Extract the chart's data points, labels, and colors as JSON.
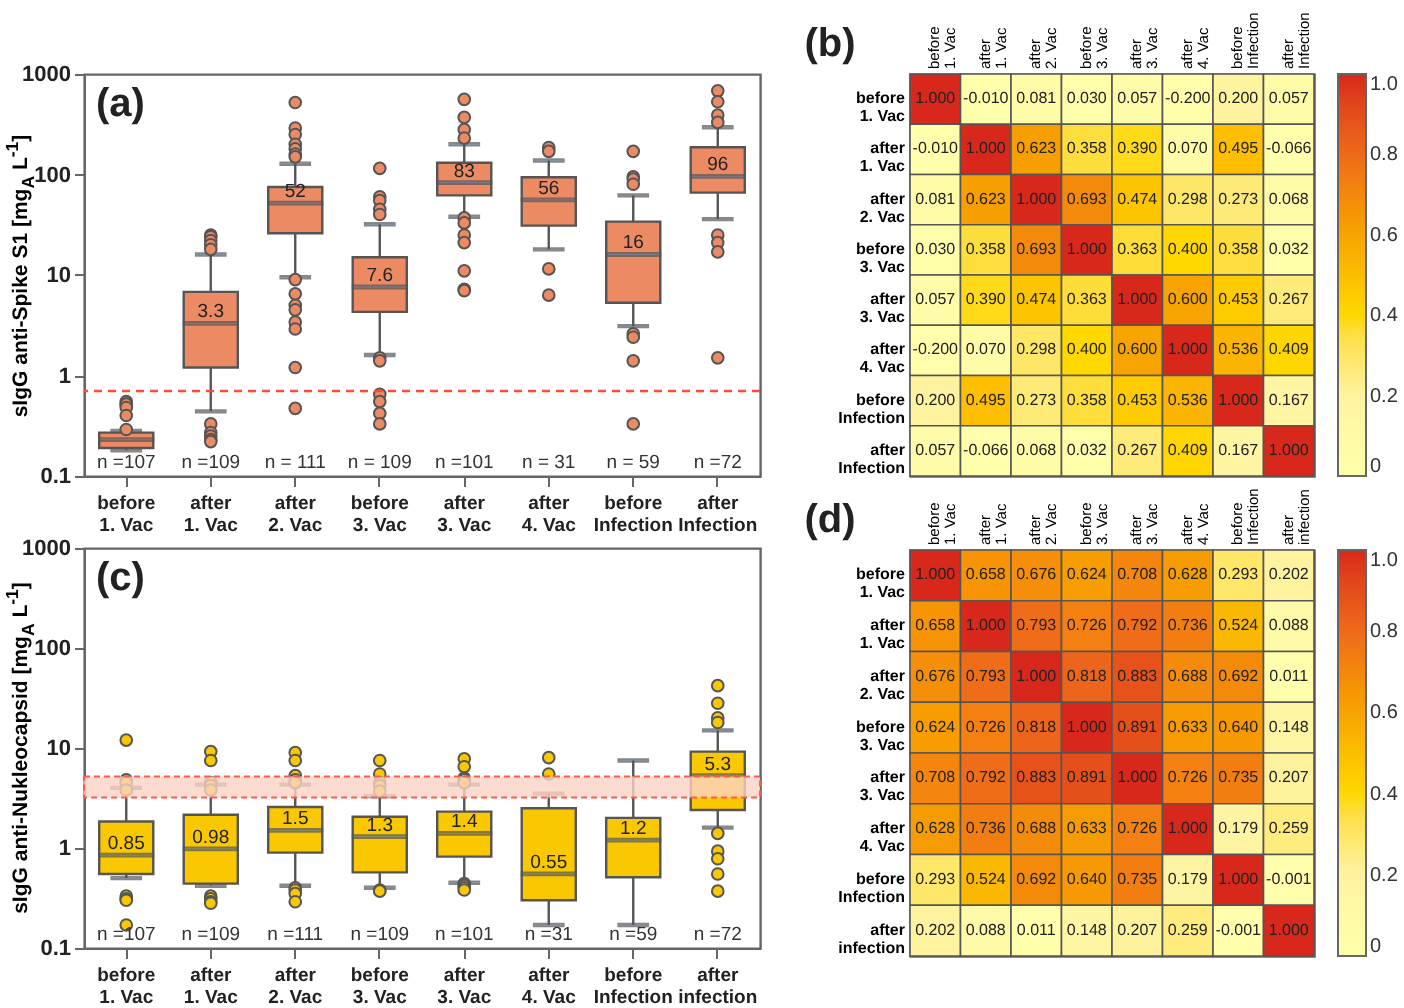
{
  "chart_data": [
    {
      "type": "box",
      "title": "(a)",
      "ylabel": "sIgG anti-Spike S1 [mg$_{A}$ L$^{-1}$]",
      "log": true,
      "ylim": [
        0.1,
        1000
      ],
      "yticks": [
        0.1,
        1,
        10,
        100,
        1000
      ],
      "marker": "circle",
      "categories": [
        "before 1. Vac",
        "after 1. Vac",
        "after 2. Vac",
        "before 3. Vac",
        "after 3. Vac",
        "after 4. Vac",
        "before Infection",
        "after Infection"
      ],
      "series": [
        {
          "color": "#ec8a64",
          "value_labels": [
            null,
            "3.3",
            "52",
            "7.6",
            "83",
            "56",
            "16",
            "96"
          ],
          "boxes": [
            {
              "low": 0.18,
              "q1": 0.19,
              "median": 0.23,
              "q3": 0.27,
              "high": 0.28,
              "outliers": [
                0.55,
                0.52,
                0.52,
                0.48,
                0.4,
                0.29
              ]
            },
            {
              "low": 0.44,
              "q1": 1.2,
              "median": 3.3,
              "q3": 6.8,
              "high": 16,
              "outliers": [
                25,
                24,
                22,
                20,
                18,
                0.33,
                0.27,
                0.25,
                0.23,
                0.22
              ]
            },
            {
              "low": 9.5,
              "q1": 26,
              "median": 52,
              "q3": 75,
              "high": 128,
              "outliers": [
                520,
                290,
                250,
                200,
                180,
                160,
                150,
                9,
                6.5,
                5,
                4.5,
                3.4,
                2.9,
                1.2,
                0.47
              ]
            },
            {
              "low": 1.6,
              "q1": 4.3,
              "median": 7.6,
              "q3": 15,
              "high": 32,
              "outliers": [
                115,
                60,
                55,
                45,
                40,
                1.5,
                1.4,
                0.65,
                0.55,
                0.42,
                0.33
              ]
            },
            {
              "low": 38,
              "q1": 62,
              "median": 83,
              "q3": 131,
              "high": 200,
              "outliers": [
                560,
                370,
                280,
                230,
                37,
                33,
                25,
                21,
                11,
                7.2,
                7
              ]
            },
            {
              "low": 18,
              "q1": 31,
              "median": 56,
              "q3": 94,
              "high": 138,
              "outliers": [
                185,
                170,
                11.5,
                6.3
              ]
            },
            {
              "low": 3.1,
              "q1": 5.3,
              "median": 16,
              "q3": 34,
              "high": 62,
              "outliers": [
                170,
                95,
                90,
                80,
                2.6,
                2.4,
                1.4,
                0.33
              ]
            },
            {
              "low": 36,
              "q1": 66,
              "median": 96,
              "q3": 187,
              "high": 295,
              "outliers": [
                680,
                530,
                390,
                330,
                25,
                21,
                17,
                1.5
              ]
            }
          ]
        }
      ],
      "ref_lines": [
        {
          "axis": "y",
          "value": 0.7,
          "color": "#ff4a3a",
          "line_style": "dashed"
        }
      ],
      "annotations": [
        "n =107",
        "n =109",
        "n = 111",
        "n = 109",
        "n =101",
        "n = 31",
        "n = 59",
        "n =72"
      ]
    },
    {
      "type": "heatmap",
      "title": "(b)",
      "clim": [
        0,
        1
      ],
      "cticks": [
        0,
        0.2,
        0.4,
        0.6,
        0.8,
        {
          "value": 1,
          "label": "1.0"
        }
      ],
      "categories": [
        "before 1. Vac",
        "after 1. Vac",
        "after 2. Vac",
        "before 3. Vac",
        "after 3. Vac",
        "after 4. Vac",
        "before Infection",
        "after Infection"
      ],
      "y_categories": [
        "before 1. Vac",
        "after 1. Vac",
        "after 2. Vac",
        "before 3. Vac",
        "after 3. Vac",
        "after 4. Vac",
        "before Infection",
        "after Infection"
      ],
      "cells": [
        [
          1,
          -0.01,
          0.081,
          0.03,
          0.057,
          -0.2,
          0.2,
          0.057
        ],
        [
          -0.01,
          1,
          0.623,
          0.358,
          0.39,
          0.07,
          0.495,
          -0.066
        ],
        [
          0.081,
          0.623,
          1,
          0.693,
          0.474,
          0.298,
          0.273,
          0.068
        ],
        [
          0.03,
          0.358,
          0.693,
          1,
          0.363,
          0.4,
          0.358,
          0.032
        ],
        [
          0.057,
          0.39,
          0.474,
          0.363,
          1,
          0.6,
          0.453,
          0.267
        ],
        [
          -0.2,
          0.07,
          0.298,
          0.4,
          0.6,
          1,
          0.536,
          0.409
        ],
        [
          0.2,
          0.495,
          0.273,
          0.358,
          0.453,
          0.536,
          1,
          0.167
        ],
        [
          0.057,
          -0.066,
          0.068,
          0.032,
          0.267,
          0.409,
          0.167,
          1
        ]
      ],
      "cell_labels": [
        [
          "1.000",
          "-0.010",
          "0.081",
          "0.030",
          "0.057",
          "-0.200",
          "0.200",
          "0.057"
        ],
        [
          "-0.010",
          "1.000",
          "0.623",
          "0.358",
          "0.390",
          "0.070",
          "0.495",
          "-0.066"
        ],
        [
          "0.081",
          "0.623",
          "1.000",
          "0.693",
          "0.474",
          "0.298",
          "0.273",
          "0.068"
        ],
        [
          "0.030",
          "0.358",
          "0.693",
          "1.000",
          "0.363",
          "0.400",
          "0.358",
          "0.032"
        ],
        [
          "0.057",
          "0.390",
          "0.474",
          "0.363",
          "1.000",
          "0.600",
          "0.453",
          "0.267"
        ],
        [
          "-0.200",
          "0.070",
          "0.298",
          "0.400",
          "0.600",
          "1.000",
          "0.536",
          "0.409"
        ],
        [
          "0.200",
          "0.495",
          "0.273",
          "0.358",
          "0.453",
          "0.536",
          "1.000",
          "0.167"
        ],
        [
          "0.057",
          "-0.066",
          "0.068",
          "0.032",
          "0.267",
          "0.409",
          "0.167",
          "1.000"
        ]
      ]
    },
    {
      "type": "box",
      "title": "(c)",
      "ylabel": "sIgG anti-Nukleocapsid [mg$_{A}$ L$^{-1}$]",
      "log": true,
      "ylim": [
        0.1,
        1000
      ],
      "yticks": [
        0.1,
        1,
        10,
        100,
        1000
      ],
      "marker": "circle",
      "categories": [
        "before 1. Vac",
        "after 1. Vac",
        "after 2. Vac",
        "before 3. Vac",
        "after 3. Vac",
        "after 4. Vac",
        "before Infection",
        "after infection"
      ],
      "series": [
        {
          "color": "#fac800",
          "value_labels": [
            "0.85",
            "0.98",
            "1.5",
            "1.3",
            "1.4",
            "0.55",
            "1.2",
            "5.3"
          ],
          "boxes": [
            {
              "low": 0.5,
              "q1": 0.55,
              "median": 0.85,
              "q3": 1.84,
              "high": 4,
              "outliers": [
                12,
                4.8,
                4.5,
                3.8,
                0.33,
                0.31,
                0.3,
                0.17
              ]
            },
            {
              "low": 0.42,
              "q1": 0.44,
              "median": 0.98,
              "q3": 2.15,
              "high": 4.3,
              "outliers": [
                9.2,
                7.5,
                4.5,
                4.2,
                3.8,
                0.33,
                0.31,
                0.29,
                0.28
              ]
            },
            {
              "low": 0.42,
              "q1": 0.9,
              "median": 1.5,
              "q3": 2.57,
              "high": 4.3,
              "outliers": [
                9,
                7.5,
                5.3,
                4.8,
                4.5,
                0.4,
                0.38,
                0.35,
                0.29
              ]
            },
            {
              "low": 0.4,
              "q1": 0.57,
              "median": 1.3,
              "q3": 2.05,
              "high": 3.3,
              "outliers": [
                7.5,
                5.5,
                4.5,
                4.2,
                3.7,
                0.38,
                0.37
              ]
            },
            {
              "low": 0.45,
              "q1": 0.82,
              "median": 1.4,
              "q3": 2.31,
              "high": 4.3,
              "outliers": [
                7.8,
                6.5,
                5,
                4.8,
                4.5,
                0.44,
                0.42,
                0.4,
                0.38
              ]
            },
            {
              "low": 0.17,
              "q1": 0.3,
              "median": 0.55,
              "q3": 2.5,
              "high": 3.5,
              "outliers": [
                8,
                5.5
              ]
            },
            {
              "low": 0.17,
              "q1": 0.51,
              "median": 1.2,
              "q3": 2,
              "high": 7.5
            },
            {
              "low": 1.6,
              "q1": 2.4,
              "median": 5.3,
              "q3": 9.2,
              "high": 15,
              "outliers": [
                42,
                28,
                20,
                18,
                1.4,
                0.93,
                0.78,
                0.55,
                0.37
              ]
            }
          ]
        }
      ],
      "bands": [
        {
          "axis": "y",
          "from": 3.2,
          "to": 5.2,
          "color": "#fbd3c6"
        }
      ],
      "annotations": [
        "n =107",
        "n =109",
        "n =111",
        "n =109",
        "n =101",
        "n =31",
        "n =59",
        "n =72"
      ]
    },
    {
      "type": "heatmap",
      "title": "(d)",
      "clim": [
        0,
        1
      ],
      "cticks": [
        0,
        0.2,
        0.4,
        0.6,
        0.8,
        {
          "value": 1,
          "label": "1.0"
        }
      ],
      "categories": [
        "before 1. Vac",
        "after 1. Vac",
        "after 2. Vac",
        "before 3. Vac",
        "after 3. Vac",
        "after 4. Vac",
        "before Infection",
        "after infection"
      ],
      "y_categories": [
        "before 1. Vac",
        "after 1. Vac",
        "after 2. Vac",
        "before 3. Vac",
        "after 3. Vac",
        "after 4. Vac",
        "before Infection",
        "after infection"
      ],
      "cells": [
        [
          1,
          0.658,
          0.676,
          0.624,
          0.708,
          0.628,
          0.293,
          0.202
        ],
        [
          0.658,
          1,
          0.793,
          0.726,
          0.792,
          0.736,
          0.524,
          0.088
        ],
        [
          0.676,
          0.793,
          1,
          0.818,
          0.883,
          0.688,
          0.692,
          0.011
        ],
        [
          0.624,
          0.726,
          0.818,
          1,
          0.891,
          0.633,
          0.64,
          0.148
        ],
        [
          0.708,
          0.792,
          0.883,
          0.891,
          1,
          0.726,
          0.735,
          0.207
        ],
        [
          0.628,
          0.736,
          0.688,
          0.633,
          0.726,
          1,
          0.179,
          0.259
        ],
        [
          0.293,
          0.524,
          0.692,
          0.64,
          0.735,
          0.179,
          1,
          -0.001
        ],
        [
          0.202,
          0.088,
          0.011,
          0.148,
          0.207,
          0.259,
          -0.001,
          1
        ]
      ],
      "cell_labels": [
        [
          "1.000",
          "0.658",
          "0.676",
          "0.624",
          "0.708",
          "0.628",
          "0.293",
          "0.202"
        ],
        [
          "0.658",
          "1.000",
          "0.793",
          "0.726",
          "0.792",
          "0.736",
          "0.524",
          "0.088"
        ],
        [
          "0.676",
          "0.793",
          "1.000",
          "0.818",
          "0.883",
          "0.688",
          "0.692",
          "0.011"
        ],
        [
          "0.624",
          "0.726",
          "0.818",
          "1.000",
          "0.891",
          "0.633",
          "0.640",
          "0.148"
        ],
        [
          "0.708",
          "0.792",
          "0.883",
          "0.891",
          "1.000",
          "0.726",
          "0.735",
          "0.207"
        ],
        [
          "0.628",
          "0.736",
          "0.688",
          "0.633",
          "0.726",
          "1.000",
          "0.179",
          "0.259"
        ],
        [
          "0.293",
          "0.524",
          "0.692",
          "0.640",
          "0.735",
          "0.179",
          "1.000",
          "-0.001"
        ],
        [
          "0.202",
          "0.088",
          "0.011",
          "0.148",
          "0.207",
          "0.259",
          "-0.001",
          "1.000"
        ]
      ]
    }
  ]
}
